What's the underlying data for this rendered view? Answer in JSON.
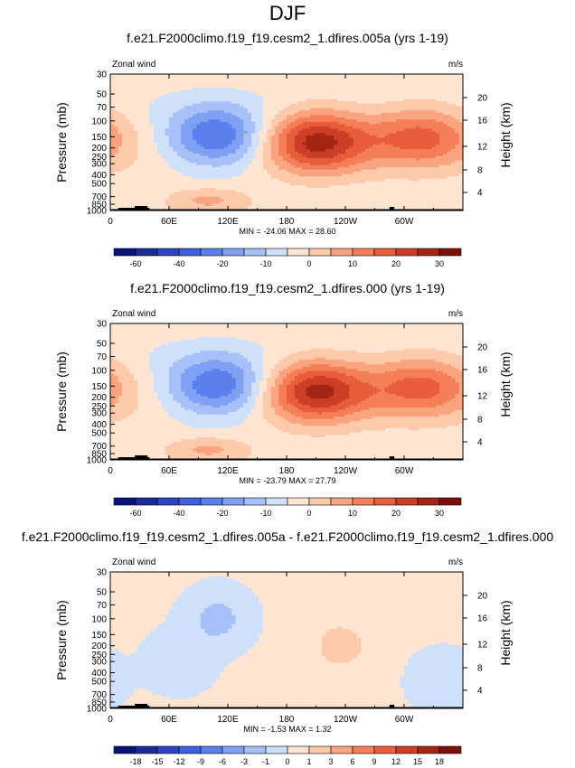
{
  "page_title": "DJF",
  "chart_data": [
    {
      "type": "heatmap",
      "title": "f.e21.F2000climo.f19_f19.cesm2_1.dfires.005a (yrs 1-19)",
      "field_label": "Zonal wind",
      "units": "m/s",
      "ylabel": "Pressure (mb)",
      "ylabel_right": "Height (km)",
      "x_ticks": [
        "0",
        "60E",
        "120E",
        "180",
        "120W",
        "60W"
      ],
      "y_ticks": [
        "30",
        "50",
        "70",
        "100",
        "150",
        "200",
        "250",
        "300",
        "400",
        "500",
        "700",
        "850",
        "1000"
      ],
      "y_ticks_right": [
        "20",
        "16",
        "12",
        "8",
        "4"
      ],
      "stats": "MIN = -24.06   MAX = 28.60",
      "colorbar_labels": [
        "-60",
        "-40",
        "-20",
        "-10",
        "0",
        "10",
        "20",
        "30"
      ],
      "features": [
        {
          "kind": "jet",
          "lon": 110,
          "pressure": 150,
          "peak": -24.06
        },
        {
          "kind": "jet",
          "lon": 210,
          "pressure": 170,
          "peak": 28.6
        },
        {
          "kind": "jet",
          "lon": 318,
          "pressure": 150,
          "peak": 18
        },
        {
          "kind": "low-level",
          "lon": 100,
          "pressure": 750,
          "peak": 9
        }
      ]
    },
    {
      "type": "heatmap",
      "title": "f.e21.F2000climo.f19_f19.cesm2_1.dfires.000 (yrs 1-19)",
      "field_label": "Zonal wind",
      "units": "m/s",
      "ylabel": "Pressure (mb)",
      "ylabel_right": "Height (km)",
      "x_ticks": [
        "0",
        "60E",
        "120E",
        "180",
        "120W",
        "60W"
      ],
      "y_ticks": [
        "30",
        "50",
        "70",
        "100",
        "150",
        "200",
        "250",
        "300",
        "400",
        "500",
        "700",
        "850",
        "1000"
      ],
      "y_ticks_right": [
        "20",
        "16",
        "12",
        "8",
        "4"
      ],
      "stats": "MIN = -23.79   MAX = 27.79",
      "colorbar_labels": [
        "-60",
        "-40",
        "-20",
        "-10",
        "0",
        "10",
        "20",
        "30"
      ],
      "features": [
        {
          "kind": "jet",
          "lon": 110,
          "pressure": 150,
          "peak": -23.79
        },
        {
          "kind": "jet",
          "lon": 210,
          "pressure": 170,
          "peak": 27.79
        },
        {
          "kind": "jet",
          "lon": 318,
          "pressure": 150,
          "peak": 18
        },
        {
          "kind": "low-level",
          "lon": 100,
          "pressure": 750,
          "peak": 9
        }
      ]
    },
    {
      "type": "heatmap",
      "title": "f.e21.F2000climo.f19_f19.cesm2_1.dfires.005a - f.e21.F2000climo.f19_f19.cesm2_1.dfires.000",
      "field_label": "Zonal wind",
      "units": "m/s",
      "ylabel": "Pressure (mb)",
      "ylabel_right": "Height (km)",
      "x_ticks": [
        "0",
        "60E",
        "120E",
        "180",
        "120W",
        "60W"
      ],
      "y_ticks": [
        "30",
        "50",
        "70",
        "100",
        "150",
        "200",
        "250",
        "300",
        "400",
        "500",
        "700",
        "850",
        "1000"
      ],
      "y_ticks_right": [
        "20",
        "16",
        "12",
        "8",
        "4"
      ],
      "stats": "MIN = -1.53   MAX = 1.32",
      "colorbar_labels": [
        "-18",
        "-15",
        "-12",
        "-9",
        "-6",
        "-3",
        "-1",
        "0",
        "1",
        "3",
        "6",
        "9",
        "12",
        "15",
        "18"
      ],
      "features": [
        {
          "kind": "anomaly",
          "lon": 110,
          "pressure": 100,
          "peak": -1.53
        },
        {
          "kind": "anomaly",
          "lon": 235,
          "pressure": 200,
          "peak": 1.32
        },
        {
          "kind": "anomaly",
          "lon": 70,
          "pressure": 300,
          "peak": -1
        },
        {
          "kind": "anomaly",
          "lon": 340,
          "pressure": 500,
          "peak": -1
        }
      ]
    }
  ],
  "colors": {
    "scale_20": [
      "#05137a",
      "#1b2a9c",
      "#2f43c4",
      "#3d5fe0",
      "#5b80ee",
      "#7fa0f3",
      "#a7c0f7",
      "#cfe0fb",
      "#fde5d2",
      "#fccaaa",
      "#f9a47f",
      "#f47e58",
      "#e85d3a",
      "#cc3e26",
      "#a52515",
      "#7d0f07"
    ],
    "scale_diff": [
      "#05137a",
      "#1b2a9c",
      "#2f43c4",
      "#3d5fe0",
      "#5b80ee",
      "#7fa0f3",
      "#a7c0f7",
      "#cfe0fb",
      "#fde5d2",
      "#fccaaa",
      "#f9a47f",
      "#f47e58",
      "#e85d3a",
      "#cc3e26",
      "#a52515",
      "#7d0f07"
    ],
    "topography": "#000000"
  }
}
